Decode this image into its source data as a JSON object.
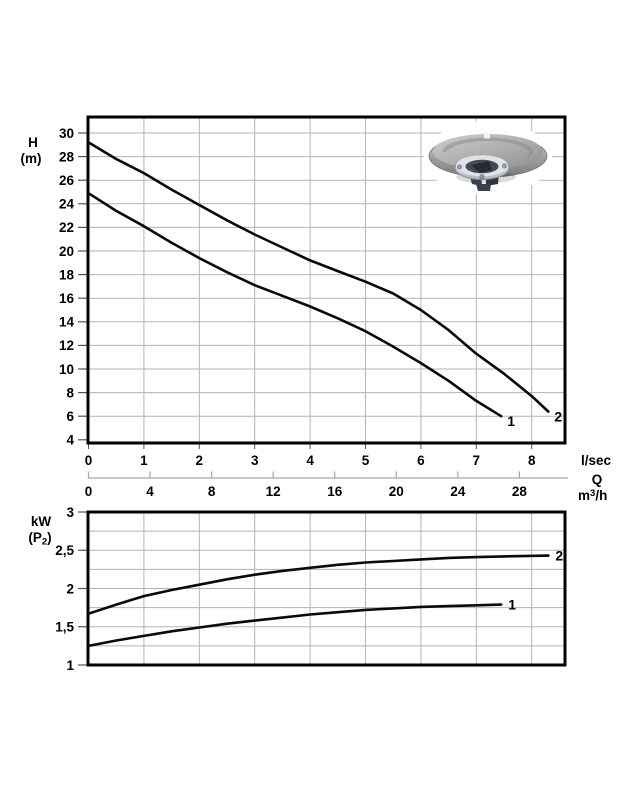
{
  "page": {
    "background": "#ffffff"
  },
  "labels": {
    "head_y1": "H",
    "head_y2": "(m)",
    "power_y1": "kW",
    "power_y2": {
      "prefix": "(P",
      "sub": "2",
      "suffix": ")"
    },
    "flow_unit_primary": "l/sec",
    "flow_symbol": "Q",
    "flow_unit_secondary_text": "m³/h",
    "flow_unit_secondary": {
      "prefix": "m",
      "sup": "3",
      "suffix": "/h"
    }
  },
  "x_axis": {
    "lsec_ticks": [
      0,
      1,
      2,
      3,
      4,
      5,
      6,
      7,
      8
    ],
    "lsec_labels": [
      "0",
      "1",
      "2",
      "3",
      "4",
      "5",
      "6",
      "7",
      "8"
    ],
    "lsec_unit": "l/sec",
    "xlim_lsec": [
      0,
      8.6
    ],
    "m3h_ticks": [
      0,
      4,
      8,
      12,
      16,
      20,
      24,
      28
    ],
    "m3h_labels": [
      "0",
      "4",
      "8",
      "12",
      "16",
      "20",
      "24",
      "28"
    ],
    "m3h_unit": "m³/h"
  },
  "chart_data": [
    {
      "id": "head",
      "type": "line",
      "title": "Pump head curves H(Q)",
      "ylabel": "H (m)",
      "xlabel": "Q (l/sec, m³/h)",
      "ylim": [
        3.75,
        31.35
      ],
      "grid": true,
      "y_tick_values": [
        30,
        28,
        26,
        24,
        22,
        20,
        18,
        16,
        14,
        12,
        10,
        8,
        6,
        4
      ],
      "y_tick_labels": [
        "30",
        "28",
        "26",
        "24",
        "22",
        "20",
        "18",
        "16",
        "14",
        "12",
        "10",
        "8",
        "6",
        "4"
      ],
      "y_gridline_values": [
        30,
        28,
        26,
        24,
        22,
        20,
        18,
        16,
        14,
        12,
        10,
        8,
        6
      ],
      "x_gridline_values": [
        1,
        2,
        3,
        4,
        5,
        6,
        7,
        8
      ],
      "series": [
        {
          "name": "1",
          "points": [
            [
              0,
              24.9
            ],
            [
              0.5,
              23.4
            ],
            [
              1,
              22.1
            ],
            [
              1.5,
              20.7
            ],
            [
              2,
              19.4
            ],
            [
              2.5,
              18.2
            ],
            [
              3,
              17.1
            ],
            [
              3.5,
              16.2
            ],
            [
              4,
              15.3
            ],
            [
              4.5,
              14.3
            ],
            [
              5,
              13.2
            ],
            [
              5.5,
              11.9
            ],
            [
              6,
              10.5
            ],
            [
              6.5,
              9.0
            ],
            [
              7,
              7.3
            ],
            [
              7.45,
              6.0
            ]
          ]
        },
        {
          "name": "2",
          "points": [
            [
              0,
              29.2
            ],
            [
              0.5,
              27.8
            ],
            [
              1,
              26.6
            ],
            [
              1.5,
              25.2
            ],
            [
              2,
              23.9
            ],
            [
              2.5,
              22.6
            ],
            [
              3,
              21.4
            ],
            [
              3.5,
              20.3
            ],
            [
              4,
              19.2
            ],
            [
              4.5,
              18.3
            ],
            [
              5,
              17.4
            ],
            [
              5.5,
              16.4
            ],
            [
              6,
              15.0
            ],
            [
              6.5,
              13.3
            ],
            [
              7,
              11.3
            ],
            [
              7.5,
              9.6
            ],
            [
              8,
              7.7
            ],
            [
              8.3,
              6.4
            ]
          ]
        }
      ]
    },
    {
      "id": "power",
      "type": "line",
      "title": "Shaft power curves P2(Q)",
      "ylabel": "kW (P2)",
      "xlabel": "Q (l/sec, m³/h)",
      "ylim": [
        1,
        3
      ],
      "grid": true,
      "y_tick_values": [
        3,
        2.5,
        2,
        1.5,
        1
      ],
      "y_tick_labels": [
        "3",
        "2,5",
        "2",
        "1,5",
        "1"
      ],
      "y_gridline_values": [
        2.75,
        2.5,
        2.25,
        2,
        1.75,
        1.5,
        1.25
      ],
      "x_gridline_values": [
        1,
        2,
        3,
        4,
        5,
        6,
        7,
        8
      ],
      "series": [
        {
          "name": "1",
          "points": [
            [
              0,
              1.25
            ],
            [
              0.5,
              1.32
            ],
            [
              1,
              1.38
            ],
            [
              1.5,
              1.44
            ],
            [
              2,
              1.49
            ],
            [
              2.5,
              1.54
            ],
            [
              3,
              1.58
            ],
            [
              3.5,
              1.62
            ],
            [
              4,
              1.66
            ],
            [
              4.5,
              1.69
            ],
            [
              5,
              1.72
            ],
            [
              5.5,
              1.74
            ],
            [
              6,
              1.76
            ],
            [
              6.5,
              1.77
            ],
            [
              7,
              1.78
            ],
            [
              7.45,
              1.79
            ]
          ]
        },
        {
          "name": "2",
          "points": [
            [
              0,
              1.67
            ],
            [
              0.5,
              1.79
            ],
            [
              1,
              1.9
            ],
            [
              1.5,
              1.98
            ],
            [
              2,
              2.05
            ],
            [
              2.5,
              2.12
            ],
            [
              3,
              2.18
            ],
            [
              3.5,
              2.23
            ],
            [
              4,
              2.27
            ],
            [
              4.5,
              2.31
            ],
            [
              5,
              2.34
            ],
            [
              5.5,
              2.36
            ],
            [
              6,
              2.38
            ],
            [
              6.5,
              2.4
            ],
            [
              7,
              2.41
            ],
            [
              7.5,
              2.42
            ],
            [
              8.3,
              2.43
            ]
          ]
        }
      ]
    }
  ],
  "colors": {
    "curve": "#0a0a0a",
    "border": "#000000",
    "grid": "#b3b3b3",
    "secondary_axis": "#a6a6a6",
    "tick": "#555555",
    "text": "#000000"
  }
}
